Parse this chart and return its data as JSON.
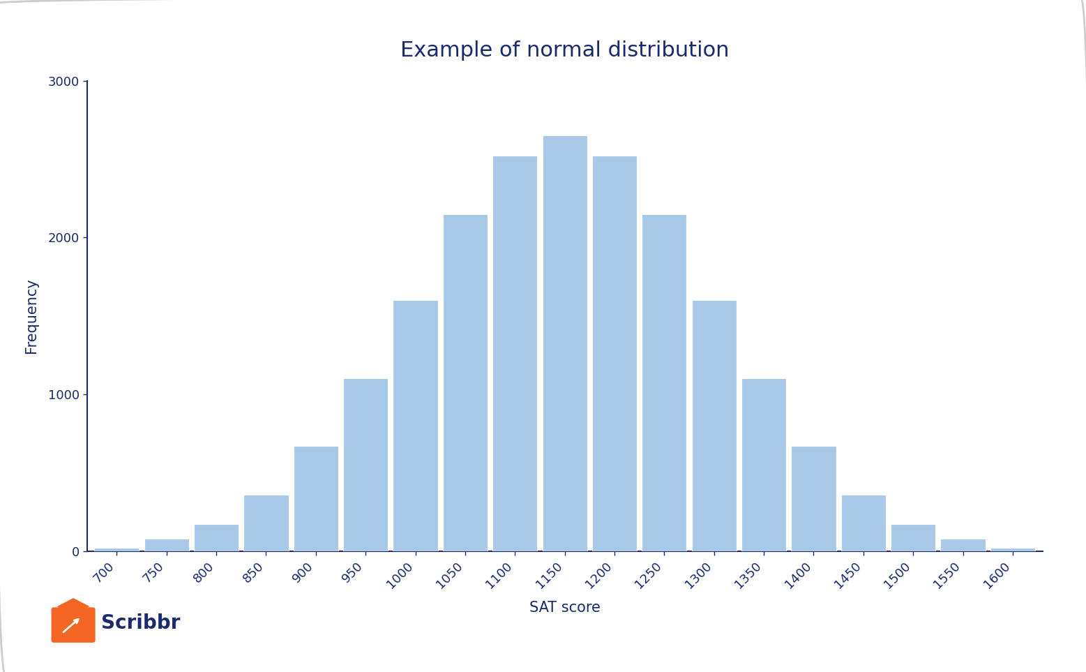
{
  "title": "Example of normal distribution",
  "xlabel": "SAT score",
  "ylabel": "Frequency",
  "bar_color": "#a8c8e8",
  "background_color": "#ffffff",
  "border_color": "#cccccc",
  "categories": [
    700,
    750,
    800,
    850,
    900,
    950,
    1000,
    1050,
    1100,
    1150,
    1200,
    1250,
    1300,
    1350,
    1400,
    1450,
    1500,
    1550,
    1600
  ],
  "values": [
    20,
    80,
    170,
    360,
    670,
    1100,
    1600,
    2150,
    2520,
    2650,
    2520,
    2150,
    1600,
    1100,
    670,
    360,
    170,
    80,
    20
  ],
  "ylim": [
    0,
    3000
  ],
  "yticks": [
    0,
    1000,
    2000,
    3000
  ],
  "title_color": "#1a2a6c",
  "label_color": "#1a2a6c",
  "tick_color": "#1a2a6c",
  "spine_color": "#1a2a6c",
  "bar_width": 0.9,
  "title_fontsize": 22,
  "label_fontsize": 15,
  "tick_fontsize": 13,
  "scribbr_text": "Scribbr",
  "scribbr_color": "#1a2a6c",
  "scribbr_orange": "#f26522"
}
